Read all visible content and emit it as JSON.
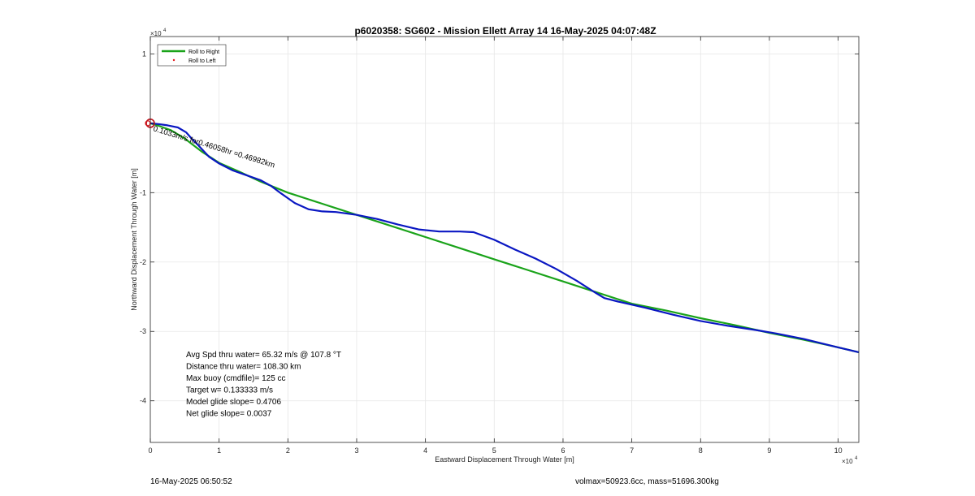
{
  "chart_data": {
    "type": "line",
    "title": "p6020358: SG602 - Mission Ellett Array 14 16-May-2025 04:07:48Z",
    "xlabel": "Eastward Displacement Through Water [m]",
    "ylabel": "Northward Displacement Through Water [m]",
    "x_exponent_label": "× 10^4",
    "y_exponent_label": "× 10^4",
    "xlim": [
      0,
      103000
    ],
    "ylim": [
      -46000,
      12500
    ],
    "xticks": [
      0,
      10000,
      20000,
      30000,
      40000,
      50000,
      60000,
      70000,
      80000,
      90000,
      100000
    ],
    "xtick_labels": [
      "0",
      "1",
      "2",
      "3",
      "4",
      "5",
      "6",
      "7",
      "8",
      "9",
      "10"
    ],
    "yticks": [
      10000,
      0,
      -10000,
      -20000,
      -30000,
      -40000
    ],
    "ytick_labels": [
      "1",
      "",
      "-1",
      "-2",
      "-3",
      "-4"
    ],
    "grid": true,
    "legend_position": "top-left",
    "legend": [
      {
        "label": "Roll to Right",
        "color": "#1aa31a",
        "style": "line"
      },
      {
        "label": "Roll to Left",
        "color": "#e41a1c",
        "style": "dot"
      }
    ],
    "series": [
      {
        "name": "Roll to Right",
        "color": "#1aa31a",
        "x": [
          0,
          1000,
          3000,
          5000,
          7500,
          10000,
          13000,
          16000,
          20000,
          25000,
          30000,
          35000,
          40000,
          45000,
          50000,
          55000,
          60000,
          65000,
          70000,
          75000,
          80000,
          85000,
          90000,
          95000,
          100000,
          103000
        ],
        "y": [
          0,
          -300,
          -1000,
          -2200,
          -4100,
          -5700,
          -7000,
          -8400,
          -10000,
          -11600,
          -13200,
          -14800,
          -16400,
          -18000,
          -19600,
          -21200,
          -22800,
          -24400,
          -26000,
          -27000,
          -28100,
          -29100,
          -30200,
          -31200,
          -32300,
          -33000
        ]
      },
      {
        "name": "",
        "color": "#0a17c2",
        "x": [
          0,
          1000,
          2500,
          4000,
          5200,
          6000,
          7000,
          8500,
          10000,
          12000,
          14000,
          16000,
          17500,
          19000,
          20000,
          21000,
          23000,
          25000,
          27000,
          30000,
          33000,
          36000,
          39000,
          42000,
          45000,
          47000,
          50000,
          53000,
          56000,
          59000,
          62000,
          64500,
          66000,
          68000,
          72000,
          76000,
          80000,
          84000,
          88000,
          91000,
          95000,
          100000,
          103000
        ],
        "y": [
          0,
          -100,
          -300,
          -600,
          -1300,
          -2200,
          -3200,
          -4800,
          -5800,
          -6800,
          -7500,
          -8200,
          -9000,
          -10100,
          -10800,
          -11500,
          -12400,
          -12700,
          -12800,
          -13200,
          -13800,
          -14600,
          -15300,
          -15600,
          -15600,
          -15700,
          -16800,
          -18200,
          -19500,
          -21000,
          -22700,
          -24300,
          -25200,
          -25700,
          -26600,
          -27600,
          -28500,
          -29200,
          -29800,
          -30300,
          -31100,
          -32300,
          -33000
        ]
      },
      {
        "name": "Roll to Left",
        "color": "#e41a1c",
        "x": [
          0
        ],
        "y": [
          0
        ]
      }
    ],
    "annotations": [
      {
        "text": "0.1033m/s for0.46058hr =0.46982km",
        "x": 0,
        "y": 0
      },
      {
        "text": "Avg Spd thru water= 65.32 m/s @ 107.8 °T"
      },
      {
        "text": "Distance thru water= 108.30 km"
      },
      {
        "text": "Max buoy (cmdfile)= 125 cc"
      },
      {
        "text": "Target w= 0.133333 m/s"
      },
      {
        "text": "Model glide slope= 0.4706"
      },
      {
        "text": "Net glide slope= 0.0037"
      }
    ]
  },
  "footer": {
    "timestamp": "16-May-2025 06:50:52",
    "vol_mass": "volmax=50923.6cc, mass=51696.300kg"
  }
}
